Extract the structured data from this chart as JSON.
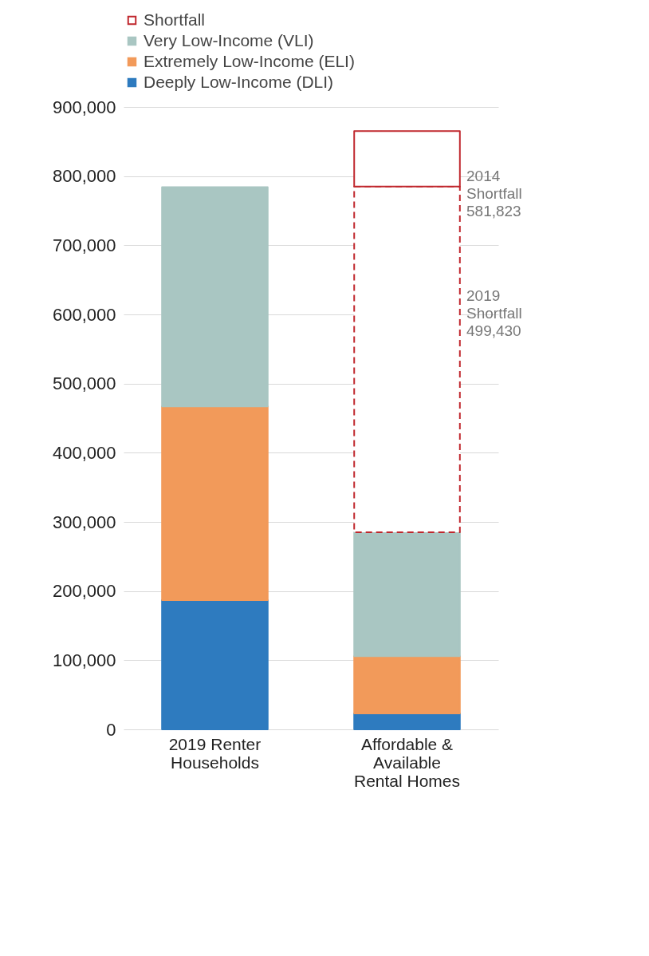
{
  "chart_data": {
    "type": "bar",
    "stacked": true,
    "categories": [
      "2019 Renter Households",
      "Affordable & Available Rental Homes"
    ],
    "series": [
      {
        "name": "Deeply Low-Income (DLI)",
        "color": "#2e7bbf",
        "values": [
          187000,
          23000
        ]
      },
      {
        "name": "Extremely Low-Income (ELI)",
        "color": "#f29a5a",
        "values": [
          280000,
          83000
        ]
      },
      {
        "name": "Very Low-Income (VLI)",
        "color": "#a9c6c2",
        "values": [
          317000,
          179000
        ]
      },
      {
        "name": "Shortfall",
        "color": "#c0272d",
        "line_style": "dashed",
        "values": [
          null,
          500000
        ]
      },
      {
        "color": "#c0272d",
        "line_style": "dashed",
        "values": [
          null,
          80000
        ]
      }
    ],
    "ylim": [
      0,
      900000
    ],
    "yticks": [
      0,
      {
        "value": 100000,
        "label": "100,000"
      },
      {
        "value": 200000,
        "label": "200,000"
      },
      {
        "value": 300000,
        "label": "300,000"
      },
      {
        "value": 400000,
        "label": "400,000"
      },
      {
        "value": 500000,
        "label": "500,000"
      },
      {
        "value": 600000,
        "label": "600,000"
      },
      {
        "value": 700000,
        "label": "700,000"
      },
      {
        "value": 800000,
        "label": "800,000"
      },
      {
        "value": 900000,
        "label": "900,000"
      }
    ],
    "grid": "y",
    "legend": "top left",
    "annotations": [
      "2014\nShortfall\n581,823",
      "2019\nShortfall\n499,430"
    ]
  }
}
